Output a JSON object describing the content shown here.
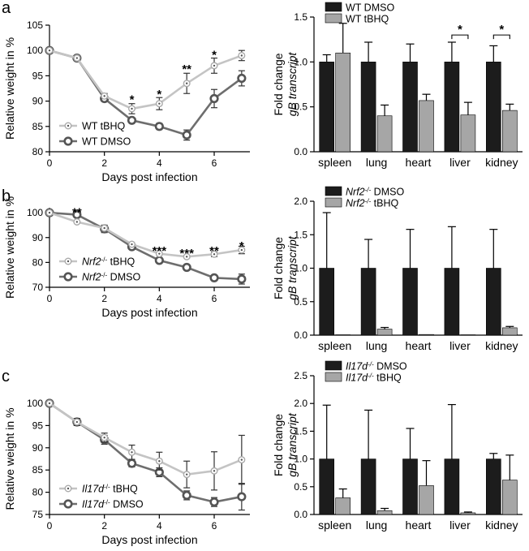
{
  "panel_labels": [
    "a",
    "b",
    "c"
  ],
  "chart_data": [
    {
      "type": "line",
      "panel": "a",
      "xlabel": "Days post infection",
      "ylabel": "Relative weight in %",
      "xlim": [
        0,
        7.3
      ],
      "ylim": [
        80,
        105
      ],
      "xticks": [
        0,
        2,
        4,
        6
      ],
      "yticks": [
        80,
        85,
        90,
        95,
        100,
        105
      ],
      "legend": "bottom-left",
      "series": [
        {
          "name": "WT tBHQ",
          "name_parts": [
            {
              "t": "WT tBHQ",
              "i": false
            }
          ],
          "color": "#c4c4c4",
          "marker": "dot",
          "x": [
            0,
            1,
            2,
            3,
            4,
            5,
            6,
            7
          ],
          "y": [
            100,
            98.5,
            91,
            88.5,
            89.5,
            93.5,
            97,
            99
          ],
          "err": [
            0,
            0,
            0.5,
            1,
            1.2,
            2,
            1.5,
            1
          ]
        },
        {
          "name": "WT DMSO",
          "name_parts": [
            {
              "t": "WT DMSO",
              "i": false
            }
          ],
          "color": "#6e6e6e",
          "marker": "open",
          "x": [
            0,
            1,
            2,
            3,
            4,
            5,
            6,
            7
          ],
          "y": [
            100,
            98.5,
            90.5,
            86.2,
            85,
            83.3,
            90.5,
            94.5
          ],
          "err": [
            0,
            0,
            0.5,
            0.5,
            0.6,
            1,
            1.8,
            1.5
          ]
        }
      ],
      "annotations": [
        {
          "x": 3,
          "y": 90.5,
          "text": "*"
        },
        {
          "x": 4,
          "y": 91.5,
          "text": "*"
        },
        {
          "x": 5,
          "y": 96.5,
          "text": "**"
        },
        {
          "x": 6,
          "y": 99.3,
          "text": "*"
        },
        {
          "x": 7,
          "y": 101
        }
      ]
    },
    {
      "type": "bar",
      "panel": "a",
      "ylabel": "Fold change",
      "ylabel2": "gB transcript",
      "categories": [
        "spleen",
        "lung",
        "heart",
        "liver",
        "kidney"
      ],
      "ylim": [
        0,
        1.5
      ],
      "yticks": [
        "0.0",
        "0.5",
        "1.0",
        "1.5"
      ],
      "legend": "top-left",
      "series": [
        {
          "name": "WT DMSO",
          "name_parts": [
            {
              "t": "WT DMSO",
              "i": false
            }
          ],
          "color": "#1c1c1c",
          "values": [
            1.0,
            1.0,
            1.0,
            1.0,
            1.0
          ],
          "err": [
            0.08,
            0.22,
            0.2,
            0.22,
            0.18
          ]
        },
        {
          "name": "WT tBHQ",
          "name_parts": [
            {
              "t": "WT tBHQ",
              "i": false
            }
          ],
          "color": "#a6a6a6",
          "values": [
            1.1,
            0.4,
            0.57,
            0.41,
            0.46
          ],
          "err": [
            0.33,
            0.12,
            0.07,
            0.14,
            0.07
          ]
        }
      ],
      "sig_brackets": [
        {
          "category": "liver",
          "text": "*",
          "y": 1.3
        },
        {
          "category": "kidney",
          "text": "*",
          "y": 1.3
        }
      ]
    },
    {
      "type": "line",
      "panel": "b",
      "xlabel": "Days post infection",
      "ylabel": "Relative weight in %",
      "xlim": [
        0,
        7.3
      ],
      "ylim": [
        70,
        102
      ],
      "xticks": [
        0,
        2,
        4,
        6
      ],
      "yticks": [
        70,
        80,
        90,
        100
      ],
      "legend": "bottom-left",
      "series": [
        {
          "name": "Nrf2-/- tBHQ",
          "name_parts": [
            {
              "t": "Nrf2",
              "i": true
            },
            {
              "t": "-/-",
              "i": false,
              "sup": true
            },
            {
              "t": " tBHQ",
              "i": false
            }
          ],
          "color": "#c4c4c4",
          "marker": "dot",
          "x": [
            0,
            1,
            2,
            3,
            4,
            5,
            6,
            7
          ],
          "y": [
            100,
            96.3,
            93.8,
            87.3,
            83.5,
            82.3,
            83.3,
            85
          ],
          "err": [
            0,
            0,
            0.5,
            0.5,
            0.5,
            0.5,
            1,
            1.5
          ]
        },
        {
          "name": "Nrf2-/- DMSO",
          "name_parts": [
            {
              "t": "Nrf2",
              "i": true
            },
            {
              "t": "-/-",
              "i": false,
              "sup": true
            },
            {
              "t": " DMSO",
              "i": false
            }
          ],
          "color": "#6e6e6e",
          "marker": "open",
          "x": [
            0,
            1,
            2,
            3,
            4,
            5,
            6,
            7
          ],
          "y": [
            100,
            99.2,
            93.5,
            86.3,
            80.8,
            78,
            73.8,
            73.3
          ],
          "err": [
            0,
            0.5,
            1.5,
            0.6,
            0.5,
            0.3,
            1,
            2
          ]
        }
      ],
      "annotations": [
        {
          "x": 1,
          "y": 100.5,
          "text": "**"
        },
        {
          "x": 4,
          "y": 85,
          "text": "***"
        },
        {
          "x": 5,
          "y": 84,
          "text": "***"
        },
        {
          "x": 6,
          "y": 85,
          "text": "**"
        },
        {
          "x": 7,
          "y": 87,
          "text": "*"
        }
      ]
    },
    {
      "type": "bar",
      "panel": "b",
      "ylabel": "Fold change",
      "ylabel2": "gB transcript",
      "categories": [
        "spleen",
        "lung",
        "heart",
        "liver",
        "kidney"
      ],
      "ylim": [
        0,
        2.0
      ],
      "yticks": [
        "0.0",
        "0.5",
        "1.0",
        "1.5",
        "2.0"
      ],
      "legend": "top-left",
      "series": [
        {
          "name": "Nrf2-/- DMSO",
          "name_parts": [
            {
              "t": "Nrf2",
              "i": true
            },
            {
              "t": "-/-",
              "i": true,
              "sup": true
            },
            {
              "t": " DMSO",
              "i": false
            }
          ],
          "color": "#1c1c1c",
          "values": [
            1.0,
            1.0,
            1.0,
            1.0,
            1.0
          ],
          "err": [
            0.83,
            0.43,
            0.58,
            0.62,
            0.58
          ]
        },
        {
          "name": "Nrf2-/- tBHQ",
          "name_parts": [
            {
              "t": "Nrf2",
              "i": true
            },
            {
              "t": "-/-",
              "i": true,
              "sup": true
            },
            {
              "t": " tBHQ",
              "i": false
            }
          ],
          "color": "#a6a6a6",
          "values": [
            0.005,
            0.09,
            0.01,
            0.005,
            0.11
          ],
          "err": [
            0,
            0.025,
            0,
            0,
            0.02
          ]
        }
      ]
    },
    {
      "type": "line",
      "panel": "c",
      "xlabel": "Days post infection",
      "ylabel": "Relative weight in %",
      "xlim": [
        0,
        7.3
      ],
      "ylim": [
        75,
        100
      ],
      "xticks": [
        0,
        2,
        4,
        6
      ],
      "yticks": [
        75,
        80,
        85,
        90,
        95,
        100
      ],
      "legend": "bottom-left",
      "series": [
        {
          "name": "Il17d-/- tBHQ",
          "name_parts": [
            {
              "t": "Il17d",
              "i": true
            },
            {
              "t": "-/-",
              "i": false,
              "sup": true
            },
            {
              "t": " tBHQ",
              "i": false
            }
          ],
          "color": "#c4c4c4",
          "marker": "dot",
          "x": [
            0,
            1,
            2,
            3,
            4,
            5,
            6,
            7
          ],
          "y": [
            100,
            95.8,
            92.3,
            89,
            87,
            84,
            84.8,
            87.3
          ],
          "err": [
            0,
            0.8,
            1,
            1.6,
            2,
            3,
            4.3,
            5.5
          ]
        },
        {
          "name": "Il17d-/- DMSO",
          "name_parts": [
            {
              "t": "Il17d",
              "i": true
            },
            {
              "t": "-/-",
              "i": false,
              "sup": true
            },
            {
              "t": " DMSO",
              "i": false
            }
          ],
          "color": "#6e6e6e",
          "marker": "open",
          "x": [
            0,
            1,
            2,
            3,
            4,
            5,
            6,
            7
          ],
          "y": [
            100,
            95.8,
            91.8,
            86.5,
            84.5,
            79.3,
            77.8,
            79
          ],
          "err": [
            0,
            0.8,
            1,
            0.8,
            1,
            1,
            1,
            3
          ]
        }
      ]
    },
    {
      "type": "bar",
      "panel": "c",
      "ylabel": "Fold change",
      "ylabel2": "gB transcript",
      "categories": [
        "spleen",
        "lung",
        "heart",
        "liver",
        "kidney"
      ],
      "ylim": [
        0,
        2.5
      ],
      "yticks": [
        "0.0",
        "0.5",
        "1.0",
        "1.5",
        "2.0",
        "2.5"
      ],
      "legend": "top-left",
      "series": [
        {
          "name": "Il17d-/- DMSO",
          "name_parts": [
            {
              "t": "Il17d",
              "i": true
            },
            {
              "t": "-/-",
              "i": true,
              "sup": true
            },
            {
              "t": " DMSO",
              "i": false
            }
          ],
          "color": "#1c1c1c",
          "values": [
            1.0,
            1.0,
            1.0,
            1.0,
            1.0
          ],
          "err": [
            0.97,
            0.88,
            0.55,
            0.98,
            0.1
          ]
        },
        {
          "name": "Il17d-/- tBHQ",
          "name_parts": [
            {
              "t": "Il17d",
              "i": true
            },
            {
              "t": "-/-",
              "i": true,
              "sup": true
            },
            {
              "t": " tBHQ",
              "i": false
            }
          ],
          "color": "#a6a6a6",
          "values": [
            0.3,
            0.07,
            0.52,
            0.03,
            0.62
          ],
          "err": [
            0.16,
            0.04,
            0.45,
            0.015,
            0.45
          ]
        }
      ]
    }
  ]
}
